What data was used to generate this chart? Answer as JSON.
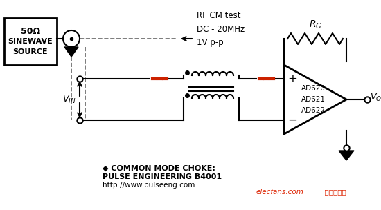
{
  "bg_color": "#ffffff",
  "line_color": "#000000",
  "red_color": "#cc2200",
  "dashed_color": "#666666",
  "box_text_line1": "50Ω",
  "box_text_line2": "SINEWAVE",
  "box_text_line3": "SOURCE",
  "rf_cm_text": "RF CM test\nDC - 20MHz\n1V p-p",
  "bottom_text1": "◆ COMMON MODE CHOKE:",
  "bottom_text2": "PULSE ENGINEERING B4001",
  "bottom_text3": "http://www.pulseeng.com",
  "watermark": "elecfans.com  电子发烧友",
  "ad_text": "AD620\nAD621\nAD622"
}
